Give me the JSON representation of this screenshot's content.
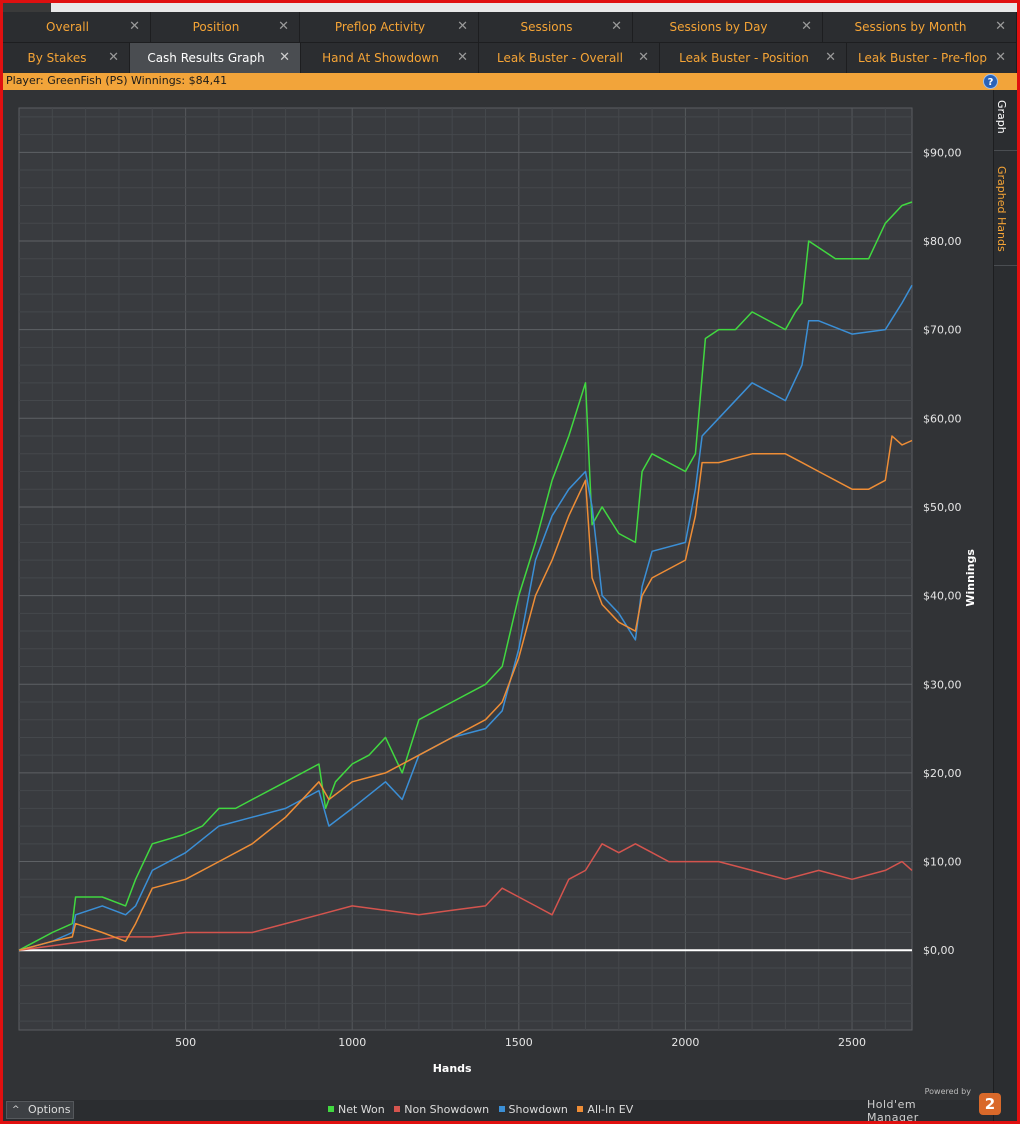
{
  "tabs_row1": [
    {
      "label": "Overall"
    },
    {
      "label": "Position"
    },
    {
      "label": "Preflop Activity"
    },
    {
      "label": "Sessions"
    },
    {
      "label": "Sessions by Day"
    },
    {
      "label": "Sessions by Month"
    }
  ],
  "tabs_row2": [
    {
      "label": "By Stakes"
    },
    {
      "label": "Cash Results Graph"
    },
    {
      "label": "Hand At Showdown"
    },
    {
      "label": "Leak Buster - Overall"
    },
    {
      "label": "Leak Buster - Position"
    },
    {
      "label": "Leak Buster - Pre-flop"
    }
  ],
  "active_tab": "Cash Results Graph",
  "close_glyph": "✕",
  "info_bar": {
    "text": "Player: GreenFish (PS) Winnings: $84,41",
    "help": "?"
  },
  "side_tabs": {
    "graph": "Graph",
    "graphed_hands": "Graphed Hands"
  },
  "bottom": {
    "options_label": "Options",
    "options_chevron": "^"
  },
  "branding": {
    "powered_by": "Powered by",
    "name": "Hold'em Manager",
    "badge": "2"
  },
  "colors": {
    "net_won": "#41d840",
    "non_showdown": "#d4544e",
    "showdown": "#3b8fd6",
    "all_in_ev": "#ee8d36",
    "accent": "#f2a43a"
  },
  "chart_data": {
    "type": "line",
    "xlabel": "Hands",
    "ylabel": "Winnings",
    "xlim": [
      0,
      2680
    ],
    "ylim": [
      -9,
      95
    ],
    "x_ticks": [
      500,
      1000,
      1500,
      2000,
      2500
    ],
    "x_tick_labels": [
      "500",
      "1000",
      "1500",
      "2000",
      "2500"
    ],
    "y_ticks": [
      0,
      10,
      20,
      30,
      40,
      50,
      60,
      70,
      80,
      90
    ],
    "y_tick_labels": [
      "$0,00",
      "$10,00",
      "$20,00",
      "$30,00",
      "$40,00",
      "$50,00",
      "$60,00",
      "$70,00",
      "$80,00",
      "$90,00"
    ],
    "grid": true,
    "legend_position": "bottom",
    "series": [
      {
        "name": "Net Won",
        "color": "#41d840",
        "x": [
          0,
          50,
          100,
          160,
          170,
          250,
          320,
          350,
          400,
          490,
          550,
          600,
          650,
          700,
          800,
          900,
          920,
          950,
          1000,
          1050,
          1100,
          1150,
          1200,
          1300,
          1400,
          1450,
          1500,
          1550,
          1600,
          1650,
          1700,
          1720,
          1750,
          1800,
          1850,
          1870,
          1900,
          2000,
          2030,
          2060,
          2100,
          2150,
          2200,
          2300,
          2330,
          2350,
          2370,
          2450,
          2550,
          2600,
          2650,
          2680
        ],
        "y": [
          0,
          1,
          2,
          3,
          6,
          6,
          5,
          8,
          12,
          13,
          14,
          16,
          16,
          17,
          19,
          21,
          16,
          19,
          21,
          22,
          24,
          20,
          26,
          28,
          30,
          32,
          40,
          46,
          53,
          58,
          64,
          48,
          50,
          47,
          46,
          54,
          56,
          54,
          56,
          69,
          70,
          70,
          72,
          70,
          72,
          73,
          80,
          78,
          78,
          82,
          84,
          84.4
        ]
      },
      {
        "name": "Non Showdown",
        "color": "#d4544e",
        "x": [
          0,
          100,
          200,
          300,
          400,
          500,
          600,
          700,
          800,
          900,
          1000,
          1100,
          1200,
          1300,
          1400,
          1450,
          1500,
          1550,
          1600,
          1650,
          1700,
          1750,
          1800,
          1850,
          1900,
          1950,
          2000,
          2100,
          2200,
          2300,
          2400,
          2500,
          2600,
          2650,
          2680
        ],
        "y": [
          0,
          0.5,
          1,
          1.5,
          1.5,
          2,
          2,
          2,
          3,
          4,
          5,
          4.5,
          4,
          4.5,
          5,
          7,
          6,
          5,
          4,
          8,
          9,
          12,
          11,
          12,
          11,
          10,
          10,
          10,
          9,
          8,
          9,
          8,
          9,
          10,
          9
        ]
      },
      {
        "name": "Showdown",
        "color": "#3b8fd6",
        "x": [
          0,
          50,
          100,
          160,
          170,
          250,
          320,
          350,
          400,
          500,
          600,
          700,
          800,
          900,
          930,
          1000,
          1100,
          1150,
          1200,
          1300,
          1400,
          1450,
          1500,
          1550,
          1600,
          1650,
          1700,
          1720,
          1750,
          1800,
          1850,
          1870,
          1900,
          2000,
          2030,
          2050,
          2100,
          2200,
          2300,
          2350,
          2370,
          2400,
          2500,
          2600,
          2650,
          2680
        ],
        "y": [
          0,
          0.5,
          1,
          2,
          4,
          5,
          4,
          5,
          9,
          11,
          14,
          15,
          16,
          18,
          14,
          16,
          19,
          17,
          22,
          24,
          25,
          27,
          34,
          44,
          49,
          52,
          54,
          50,
          40,
          38,
          35,
          41,
          45,
          46,
          52,
          58,
          60,
          64,
          62,
          66,
          71,
          71,
          69.5,
          70,
          73,
          75
        ]
      },
      {
        "name": "All-In EV",
        "color": "#ee8d36",
        "x": [
          0,
          50,
          100,
          160,
          170,
          250,
          320,
          350,
          400,
          500,
          600,
          700,
          800,
          900,
          930,
          1000,
          1100,
          1200,
          1300,
          1400,
          1450,
          1500,
          1550,
          1600,
          1650,
          1700,
          1720,
          1750,
          1800,
          1850,
          1870,
          1900,
          2000,
          2030,
          2050,
          2100,
          2200,
          2300,
          2350,
          2400,
          2500,
          2550,
          2600,
          2620,
          2650,
          2680
        ],
        "y": [
          0,
          0.5,
          1,
          1.5,
          3,
          2,
          1,
          3,
          7,
          8,
          10,
          12,
          15,
          19,
          17,
          19,
          20,
          22,
          24,
          26,
          28,
          33,
          40,
          44,
          49,
          53,
          42,
          39,
          37,
          36,
          40,
          42,
          44,
          49,
          55,
          55,
          56,
          56,
          55,
          54,
          52,
          52,
          53,
          58,
          57,
          57.5
        ]
      }
    ]
  }
}
